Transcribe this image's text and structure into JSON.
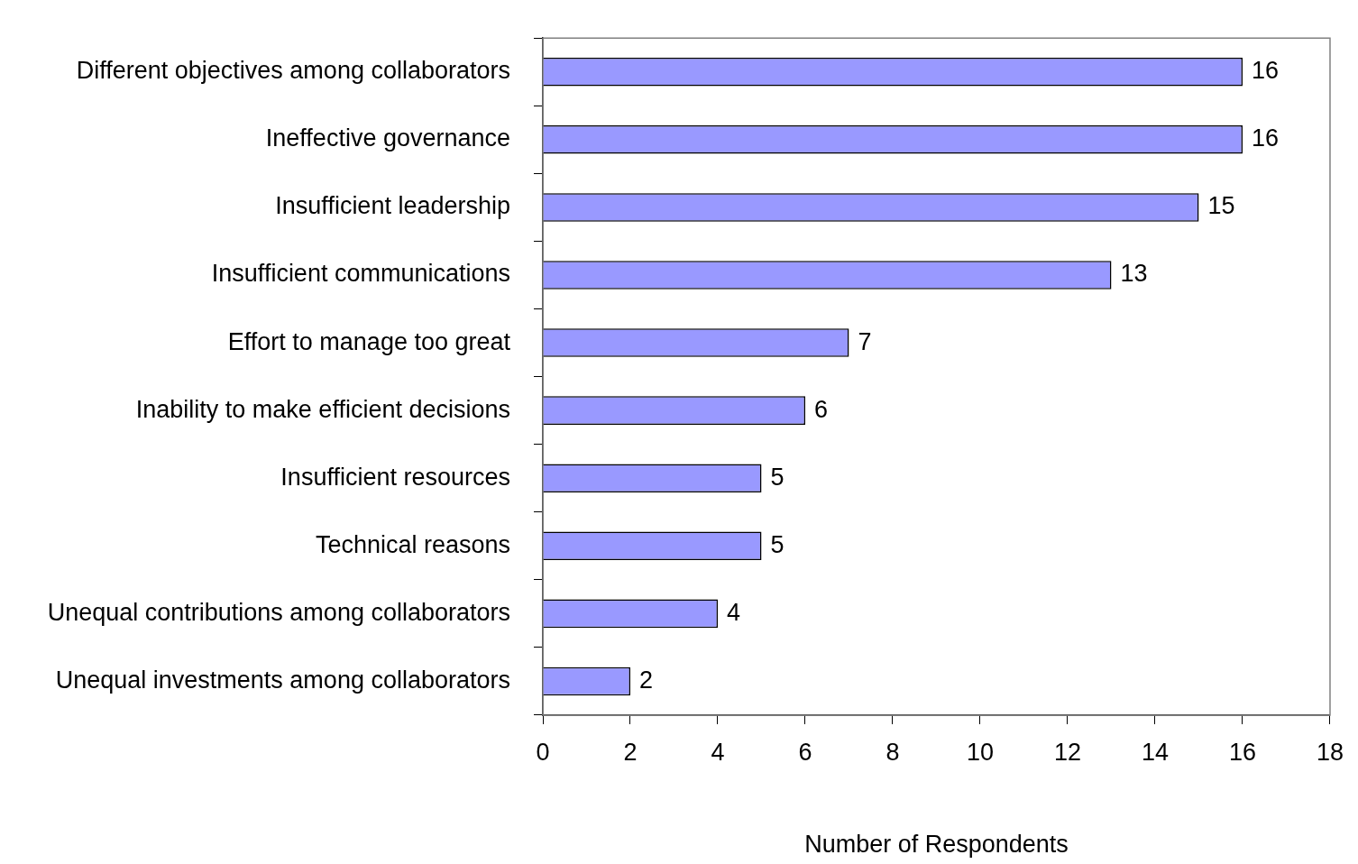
{
  "chart_data": {
    "type": "bar",
    "orientation": "horizontal",
    "categories": [
      "Different objectives among collaborators",
      "Ineffective governance",
      "Insufficient leadership",
      "Insufficient communications",
      "Effort to manage too great",
      "Inability to make efficient decisions",
      "Insufficient resources",
      "Technical reasons",
      "Unequal contributions among collaborators",
      "Unequal investments among collaborators"
    ],
    "values": [
      16,
      16,
      15,
      13,
      7,
      6,
      5,
      5,
      4,
      2
    ],
    "color": "#9999ff",
    "xlabel": "Number of Respondents",
    "xlim": [
      0,
      18
    ],
    "xticks": [
      0,
      2,
      4,
      6,
      8,
      10,
      12,
      14,
      16,
      18
    ],
    "data_labels": true
  }
}
